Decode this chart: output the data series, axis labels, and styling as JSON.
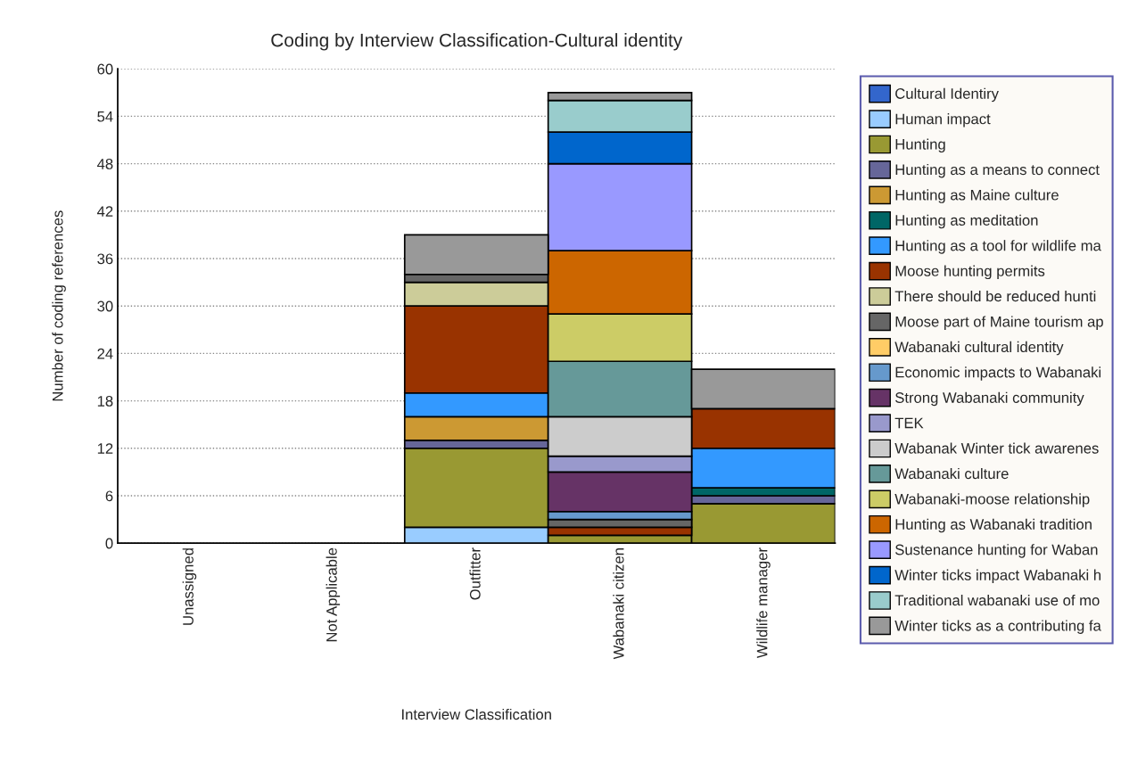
{
  "chart_data": {
    "type": "bar",
    "stacked": true,
    "title": "Coding by Interview Classification-Cultural identity",
    "xlabel": "Interview Classification",
    "ylabel": "Number of coding references",
    "categories": [
      "Unassigned",
      "Not Applicable",
      "Outfitter",
      "Wabanaki citizen",
      "Wildlife manager"
    ],
    "ylim": [
      0,
      60
    ],
    "yticks": [
      0,
      6,
      12,
      18,
      24,
      30,
      36,
      42,
      48,
      54,
      60
    ],
    "grid": "y",
    "legend": "right",
    "series": [
      {
        "name": "Cultural Identiry",
        "color": "#3366cc",
        "values": [
          0,
          0,
          0,
          0,
          0
        ]
      },
      {
        "name": "Human impact",
        "color": "#99ccff",
        "values": [
          0,
          0,
          2,
          0,
          0
        ]
      },
      {
        "name": "Hunting",
        "color": "#999933",
        "values": [
          0,
          0,
          10,
          1,
          5
        ]
      },
      {
        "name": "Hunting as a means to connect",
        "color": "#666699",
        "values": [
          0,
          0,
          1,
          0,
          1
        ]
      },
      {
        "name": "Hunting as Maine culture",
        "color": "#cc9933",
        "values": [
          0,
          0,
          3,
          0,
          0
        ]
      },
      {
        "name": "Hunting as meditation",
        "color": "#006666",
        "values": [
          0,
          0,
          0,
          0,
          1
        ]
      },
      {
        "name": "Hunting as a tool for wildlife ma",
        "color": "#3399ff",
        "values": [
          0,
          0,
          3,
          0,
          5
        ]
      },
      {
        "name": "Moose hunting permits",
        "color": "#993300",
        "values": [
          0,
          0,
          11,
          1,
          5
        ]
      },
      {
        "name": "There should be reduced hunti",
        "color": "#cccc99",
        "values": [
          0,
          0,
          3,
          0,
          0
        ]
      },
      {
        "name": "Moose part of Maine tourism ap",
        "color": "#666666",
        "values": [
          0,
          0,
          1,
          1,
          0
        ]
      },
      {
        "name": "Wabanaki cultural identity",
        "color": "#ffcc66",
        "values": [
          0,
          0,
          0,
          0,
          0
        ]
      },
      {
        "name": "Economic impacts to Wabanaki",
        "color": "#6699cc",
        "values": [
          0,
          0,
          0,
          1,
          0
        ]
      },
      {
        "name": "Strong Wabanaki community",
        "color": "#663366",
        "values": [
          0,
          0,
          0,
          5,
          0
        ]
      },
      {
        "name": "TEK",
        "color": "#9999cc",
        "values": [
          0,
          0,
          0,
          2,
          0
        ]
      },
      {
        "name": "Wabanak Winter tick awarenes",
        "color": "#cccccc",
        "values": [
          0,
          0,
          0,
          5,
          0
        ]
      },
      {
        "name": "Wabanaki culture",
        "color": "#669999",
        "values": [
          0,
          0,
          0,
          7,
          0
        ]
      },
      {
        "name": "Wabanaki-moose relationship",
        "color": "#cccc66",
        "values": [
          0,
          0,
          0,
          6,
          0
        ]
      },
      {
        "name": "Hunting as Wabanaki tradition",
        "color": "#cc6600",
        "values": [
          0,
          0,
          0,
          8,
          0
        ]
      },
      {
        "name": "Sustenance hunting for Waban",
        "color": "#9999ff",
        "values": [
          0,
          0,
          0,
          11,
          0
        ]
      },
      {
        "name": "Winter ticks impact Wabanaki h",
        "color": "#0066cc",
        "values": [
          0,
          0,
          0,
          4,
          0
        ]
      },
      {
        "name": "Traditional wabanaki use of mo",
        "color": "#99cccc",
        "values": [
          0,
          0,
          0,
          4,
          0
        ]
      },
      {
        "name": "Winter ticks as a contributing fa",
        "color": "#999999",
        "values": [
          0,
          0,
          5,
          1,
          5
        ]
      }
    ]
  }
}
